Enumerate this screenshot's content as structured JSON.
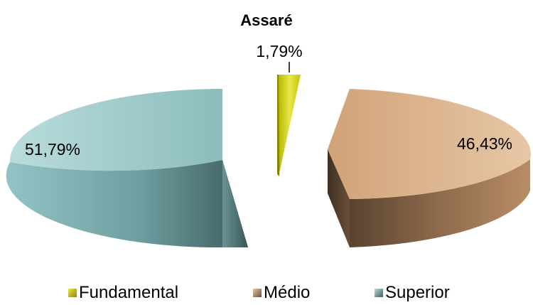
{
  "chart_data": {
    "type": "pie",
    "title": "Assaré",
    "slices": [
      {
        "label": "Fundamental",
        "value": 1.79,
        "data_label": "1,79%",
        "color": "#CCCC1A"
      },
      {
        "label": "Médio",
        "value": 46.43,
        "data_label": "46,43%",
        "color": "#C99A6E"
      },
      {
        "label": "Superior",
        "value": 51.79,
        "data_label": "51,79%",
        "color": "#8FBFC0"
      }
    ],
    "legend_position": "bottom",
    "style": "3d exploded pie"
  }
}
